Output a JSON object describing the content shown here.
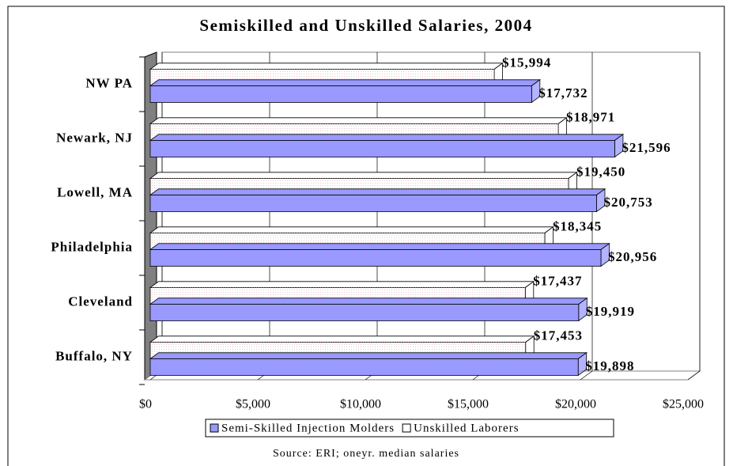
{
  "chart_data": {
    "type": "bar3d_horizontal",
    "title": "Semiskilled and Unskilled Salaries, 2004",
    "categories": [
      "NW PA",
      "Newark, NJ",
      "Lowell, MA",
      "Philadelphia",
      "Cleveland",
      "Buffalo, NY"
    ],
    "series": [
      {
        "name": "Semi-Skilled Injection Molders",
        "color": "#9999ff",
        "values": [
          17732,
          21596,
          20753,
          20956,
          19919,
          19898
        ],
        "value_labels": [
          "$17,732",
          "$21,596",
          "$20,753",
          "$20,956",
          "$19,919",
          "$19,898"
        ]
      },
      {
        "name": "Unskilled Laborers",
        "color": "#ffffff",
        "values": [
          15994,
          18971,
          19450,
          18345,
          17437,
          17453
        ],
        "value_labels": [
          "$15,994",
          "$18,971",
          "$19,450",
          "$18,345",
          "$17,437",
          "$17,453"
        ]
      }
    ],
    "xlim": [
      0,
      25000
    ],
    "xticks": [
      {
        "value": 0,
        "label": "$0"
      },
      {
        "value": 5000,
        "label": "$5,000"
      },
      {
        "value": 10000,
        "label": "$10,000"
      },
      {
        "value": 15000,
        "label": "$15,000"
      },
      {
        "value": 20000,
        "label": "$20,000"
      },
      {
        "value": 25000,
        "label": "$25,000"
      }
    ],
    "grid": true,
    "legend": "bottom",
    "source": "Source: ERI; oneyr. median salaries"
  }
}
